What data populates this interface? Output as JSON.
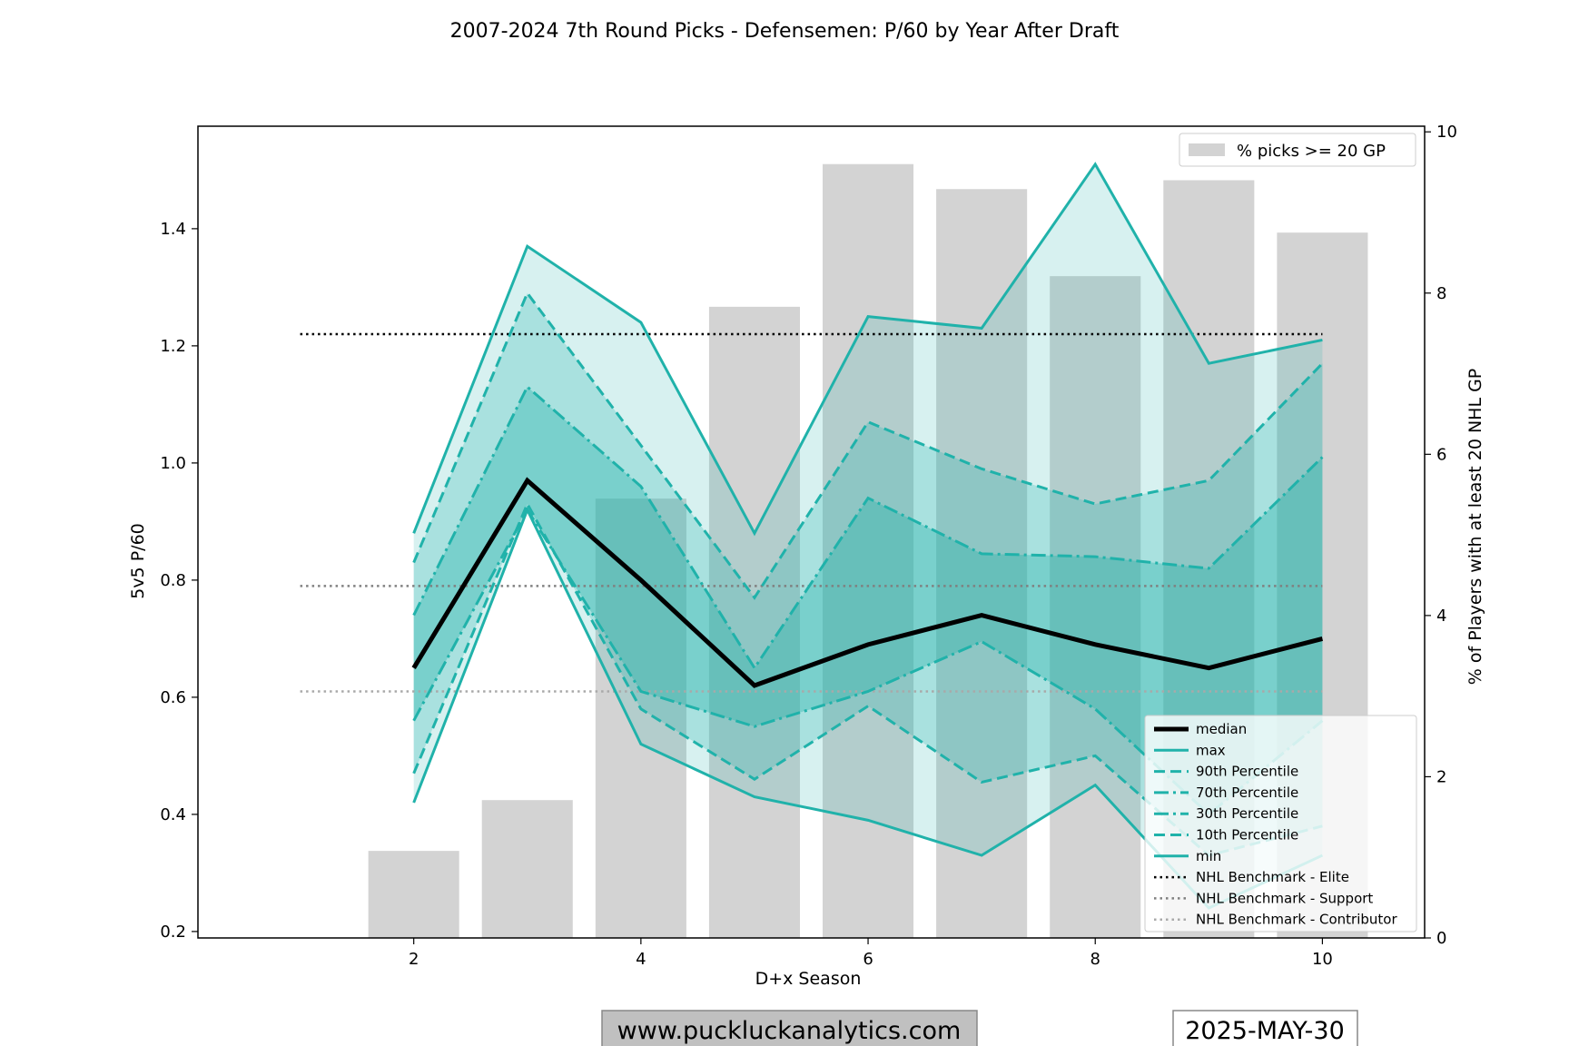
{
  "chart_data": {
    "type": "line",
    "title": "2007-2024 7th Round Picks - Defensemen: P/60 by Year After Draft",
    "xlabel": "D+x Season",
    "ylabel": "5v5 P/60",
    "y2label": "% of Players with at least 20 NHL GP",
    "x": [
      2,
      3,
      4,
      5,
      6,
      7,
      8,
      9,
      10
    ],
    "xlim": [
      0.1,
      10.9
    ],
    "ylim": [
      0.189,
      1.575
    ],
    "y2lim": [
      0,
      10.07
    ],
    "xticks": [
      "2",
      "4",
      "6",
      "8",
      "10"
    ],
    "yticks": [
      "0.2",
      "0.4",
      "0.6",
      "0.8",
      "1.0",
      "1.2",
      "1.4"
    ],
    "y2ticks": [
      "0",
      "2",
      "4",
      "6",
      "8",
      "10"
    ],
    "bars": {
      "name": "% picks >= 20 GP",
      "color": "#d3d3d3",
      "values": [
        1.08,
        1.71,
        5.45,
        7.83,
        9.6,
        9.29,
        8.21,
        9.4,
        8.75
      ]
    },
    "series": [
      {
        "name": "median",
        "color": "#000000",
        "dash": "solid",
        "values": [
          0.65,
          0.97,
          0.8,
          0.62,
          0.69,
          0.74,
          0.69,
          0.65,
          0.7
        ]
      },
      {
        "name": "max",
        "color": "#20b2aa",
        "dash": "solid",
        "values": [
          0.88,
          1.37,
          1.24,
          0.88,
          1.25,
          1.23,
          1.51,
          1.17,
          1.21
        ]
      },
      {
        "name": "90th Percentile",
        "color": "#20b2aa",
        "dash": "dashed",
        "values": [
          0.83,
          1.29,
          1.03,
          0.77,
          1.07,
          0.99,
          0.93,
          0.97,
          1.17
        ]
      },
      {
        "name": "70th Percentile",
        "color": "#20b2aa",
        "dash": "dashdot",
        "values": [
          0.74,
          1.13,
          0.96,
          0.65,
          0.94,
          0.845,
          0.84,
          0.82,
          1.01
        ]
      },
      {
        "name": "30th Percentile",
        "color": "#20b2aa",
        "dash": "dashdot",
        "values": [
          0.56,
          0.92,
          0.61,
          0.55,
          0.61,
          0.695,
          0.58,
          0.4,
          0.56
        ]
      },
      {
        "name": "10th Percentile",
        "color": "#20b2aa",
        "dash": "dashed",
        "values": [
          0.47,
          0.93,
          0.58,
          0.46,
          0.585,
          0.455,
          0.5,
          0.33,
          0.38
        ]
      },
      {
        "name": "min",
        "color": "#20b2aa",
        "dash": "solid",
        "values": [
          0.42,
          0.92,
          0.52,
          0.43,
          0.39,
          0.33,
          0.45,
          0.24,
          0.33
        ]
      }
    ],
    "bands": [
      {
        "lower": "min",
        "upper": "max",
        "color": "#20b2aa",
        "opacity": 0.18
      },
      {
        "lower": "10th Percentile",
        "upper": "90th Percentile",
        "color": "#20b2aa",
        "opacity": 0.25
      },
      {
        "lower": "30th Percentile",
        "upper": "70th Percentile",
        "color": "#20b2aa",
        "opacity": 0.35
      }
    ],
    "benchmarks": [
      {
        "name": "NHL Benchmark - Elite",
        "value": 1.22,
        "color": "#000000"
      },
      {
        "name": "NHL Benchmark - Support",
        "value": 0.79,
        "color": "#808080"
      },
      {
        "name": "NHL Benchmark - Contributor",
        "value": 0.61,
        "color": "#a9a9a9"
      }
    ],
    "benchmark_x": [
      1,
      10
    ],
    "legend_bar_position": "top-right",
    "legend_lines_position": "lower-right"
  },
  "footer": {
    "website": "www.puckluckanalytics.com",
    "date": "2025-MAY-30"
  }
}
